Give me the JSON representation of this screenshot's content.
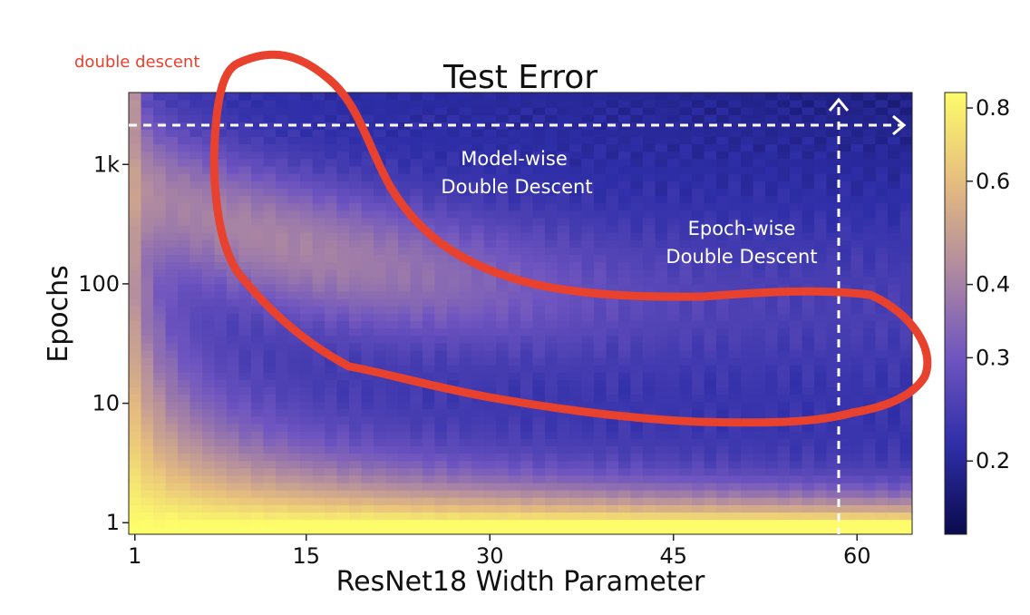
{
  "chart_data": {
    "type": "heatmap",
    "title": "Test Error",
    "xlabel": "ResNet18 Width Parameter",
    "ylabel": "Epochs",
    "x_range": [
      1,
      64
    ],
    "y_range_epochs": [
      1,
      4000
    ],
    "y_scale": "log",
    "x_ticks": [
      {
        "value": 1,
        "label": "1"
      },
      {
        "value": 15,
        "label": "15"
      },
      {
        "value": 30,
        "label": "30"
      },
      {
        "value": 45,
        "label": "45"
      },
      {
        "value": 60,
        "label": "60"
      }
    ],
    "y_ticks": [
      {
        "value": 1,
        "label": "1"
      },
      {
        "value": 10,
        "label": "10"
      },
      {
        "value": 100,
        "label": "100"
      },
      {
        "value": 1000,
        "label": "1k"
      }
    ],
    "colorbar": {
      "range": [
        0.15,
        0.85
      ],
      "scale": "log",
      "ticks": [
        {
          "value": 0.2,
          "label": "0.2"
        },
        {
          "value": 0.3,
          "label": "0.3"
        },
        {
          "value": 0.4,
          "label": "0.4"
        },
        {
          "value": 0.6,
          "label": "0.6"
        },
        {
          "value": 0.8,
          "label": "0.8"
        }
      ],
      "colormap": "plasma-like",
      "colors": [
        "#0b0b4d",
        "#2e2ea8",
        "#6f55c0",
        "#b08aa0",
        "#e6bd7e",
        "#fdfc6a"
      ]
    },
    "annotations": [
      {
        "name": "model-wise",
        "lines": [
          "Model-wise",
          "Double Descent"
        ],
        "color": "#ffffff"
      },
      {
        "name": "epoch-wise",
        "lines": [
          "Epoch-wise",
          "Double Descent"
        ],
        "color": "#ffffff"
      },
      {
        "name": "highlight",
        "text": "double descent",
        "color": "#e8412d"
      }
    ],
    "guide_lines": [
      {
        "orientation": "horizontal",
        "epochs": 2700,
        "style": "dashed",
        "color": "#ffffff"
      },
      {
        "orientation": "vertical",
        "width_param": 58,
        "style": "dashed",
        "color": "#ffffff"
      }
    ]
  }
}
